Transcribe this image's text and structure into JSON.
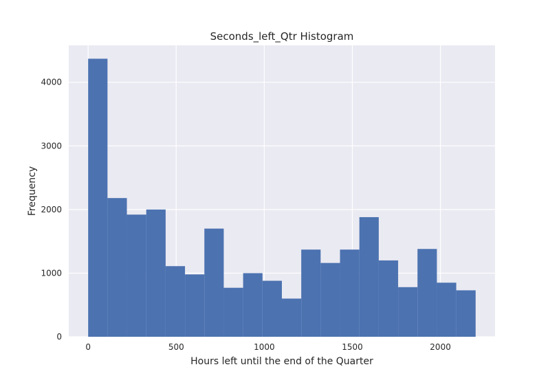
{
  "chart_data": {
    "type": "bar",
    "title": "Seconds_left_Qtr Histogram",
    "xlabel": "Hours left until the end of the Quarter",
    "ylabel": "Frequency",
    "xlim": [
      -110,
      2310
    ],
    "ylim": [
      0,
      4580
    ],
    "xticks": [
      0,
      500,
      1000,
      1500,
      2000
    ],
    "yticks": [
      0,
      1000,
      2000,
      3000,
      4000
    ],
    "grid": true,
    "legend": "none",
    "colors": {
      "bar": "#4c72b0",
      "plot_bg": "#eaeaf2",
      "grid": "#ffffff"
    },
    "bins": [
      {
        "start": 0,
        "end": 110,
        "value": 4370
      },
      {
        "start": 110,
        "end": 220,
        "value": 2180
      },
      {
        "start": 220,
        "end": 330,
        "value": 1920
      },
      {
        "start": 330,
        "end": 440,
        "value": 2000
      },
      {
        "start": 440,
        "end": 550,
        "value": 1110
      },
      {
        "start": 550,
        "end": 660,
        "value": 980
      },
      {
        "start": 660,
        "end": 770,
        "value": 1700
      },
      {
        "start": 770,
        "end": 880,
        "value": 770
      },
      {
        "start": 880,
        "end": 990,
        "value": 1000
      },
      {
        "start": 990,
        "end": 1100,
        "value": 880
      },
      {
        "start": 1100,
        "end": 1210,
        "value": 600
      },
      {
        "start": 1210,
        "end": 1320,
        "value": 1370
      },
      {
        "start": 1320,
        "end": 1430,
        "value": 1160
      },
      {
        "start": 1430,
        "end": 1540,
        "value": 1370
      },
      {
        "start": 1540,
        "end": 1650,
        "value": 1880
      },
      {
        "start": 1650,
        "end": 1760,
        "value": 1200
      },
      {
        "start": 1760,
        "end": 1870,
        "value": 780
      },
      {
        "start": 1870,
        "end": 1980,
        "value": 1380
      },
      {
        "start": 1980,
        "end": 2090,
        "value": 850
      },
      {
        "start": 2090,
        "end": 2200,
        "value": 730
      }
    ]
  }
}
